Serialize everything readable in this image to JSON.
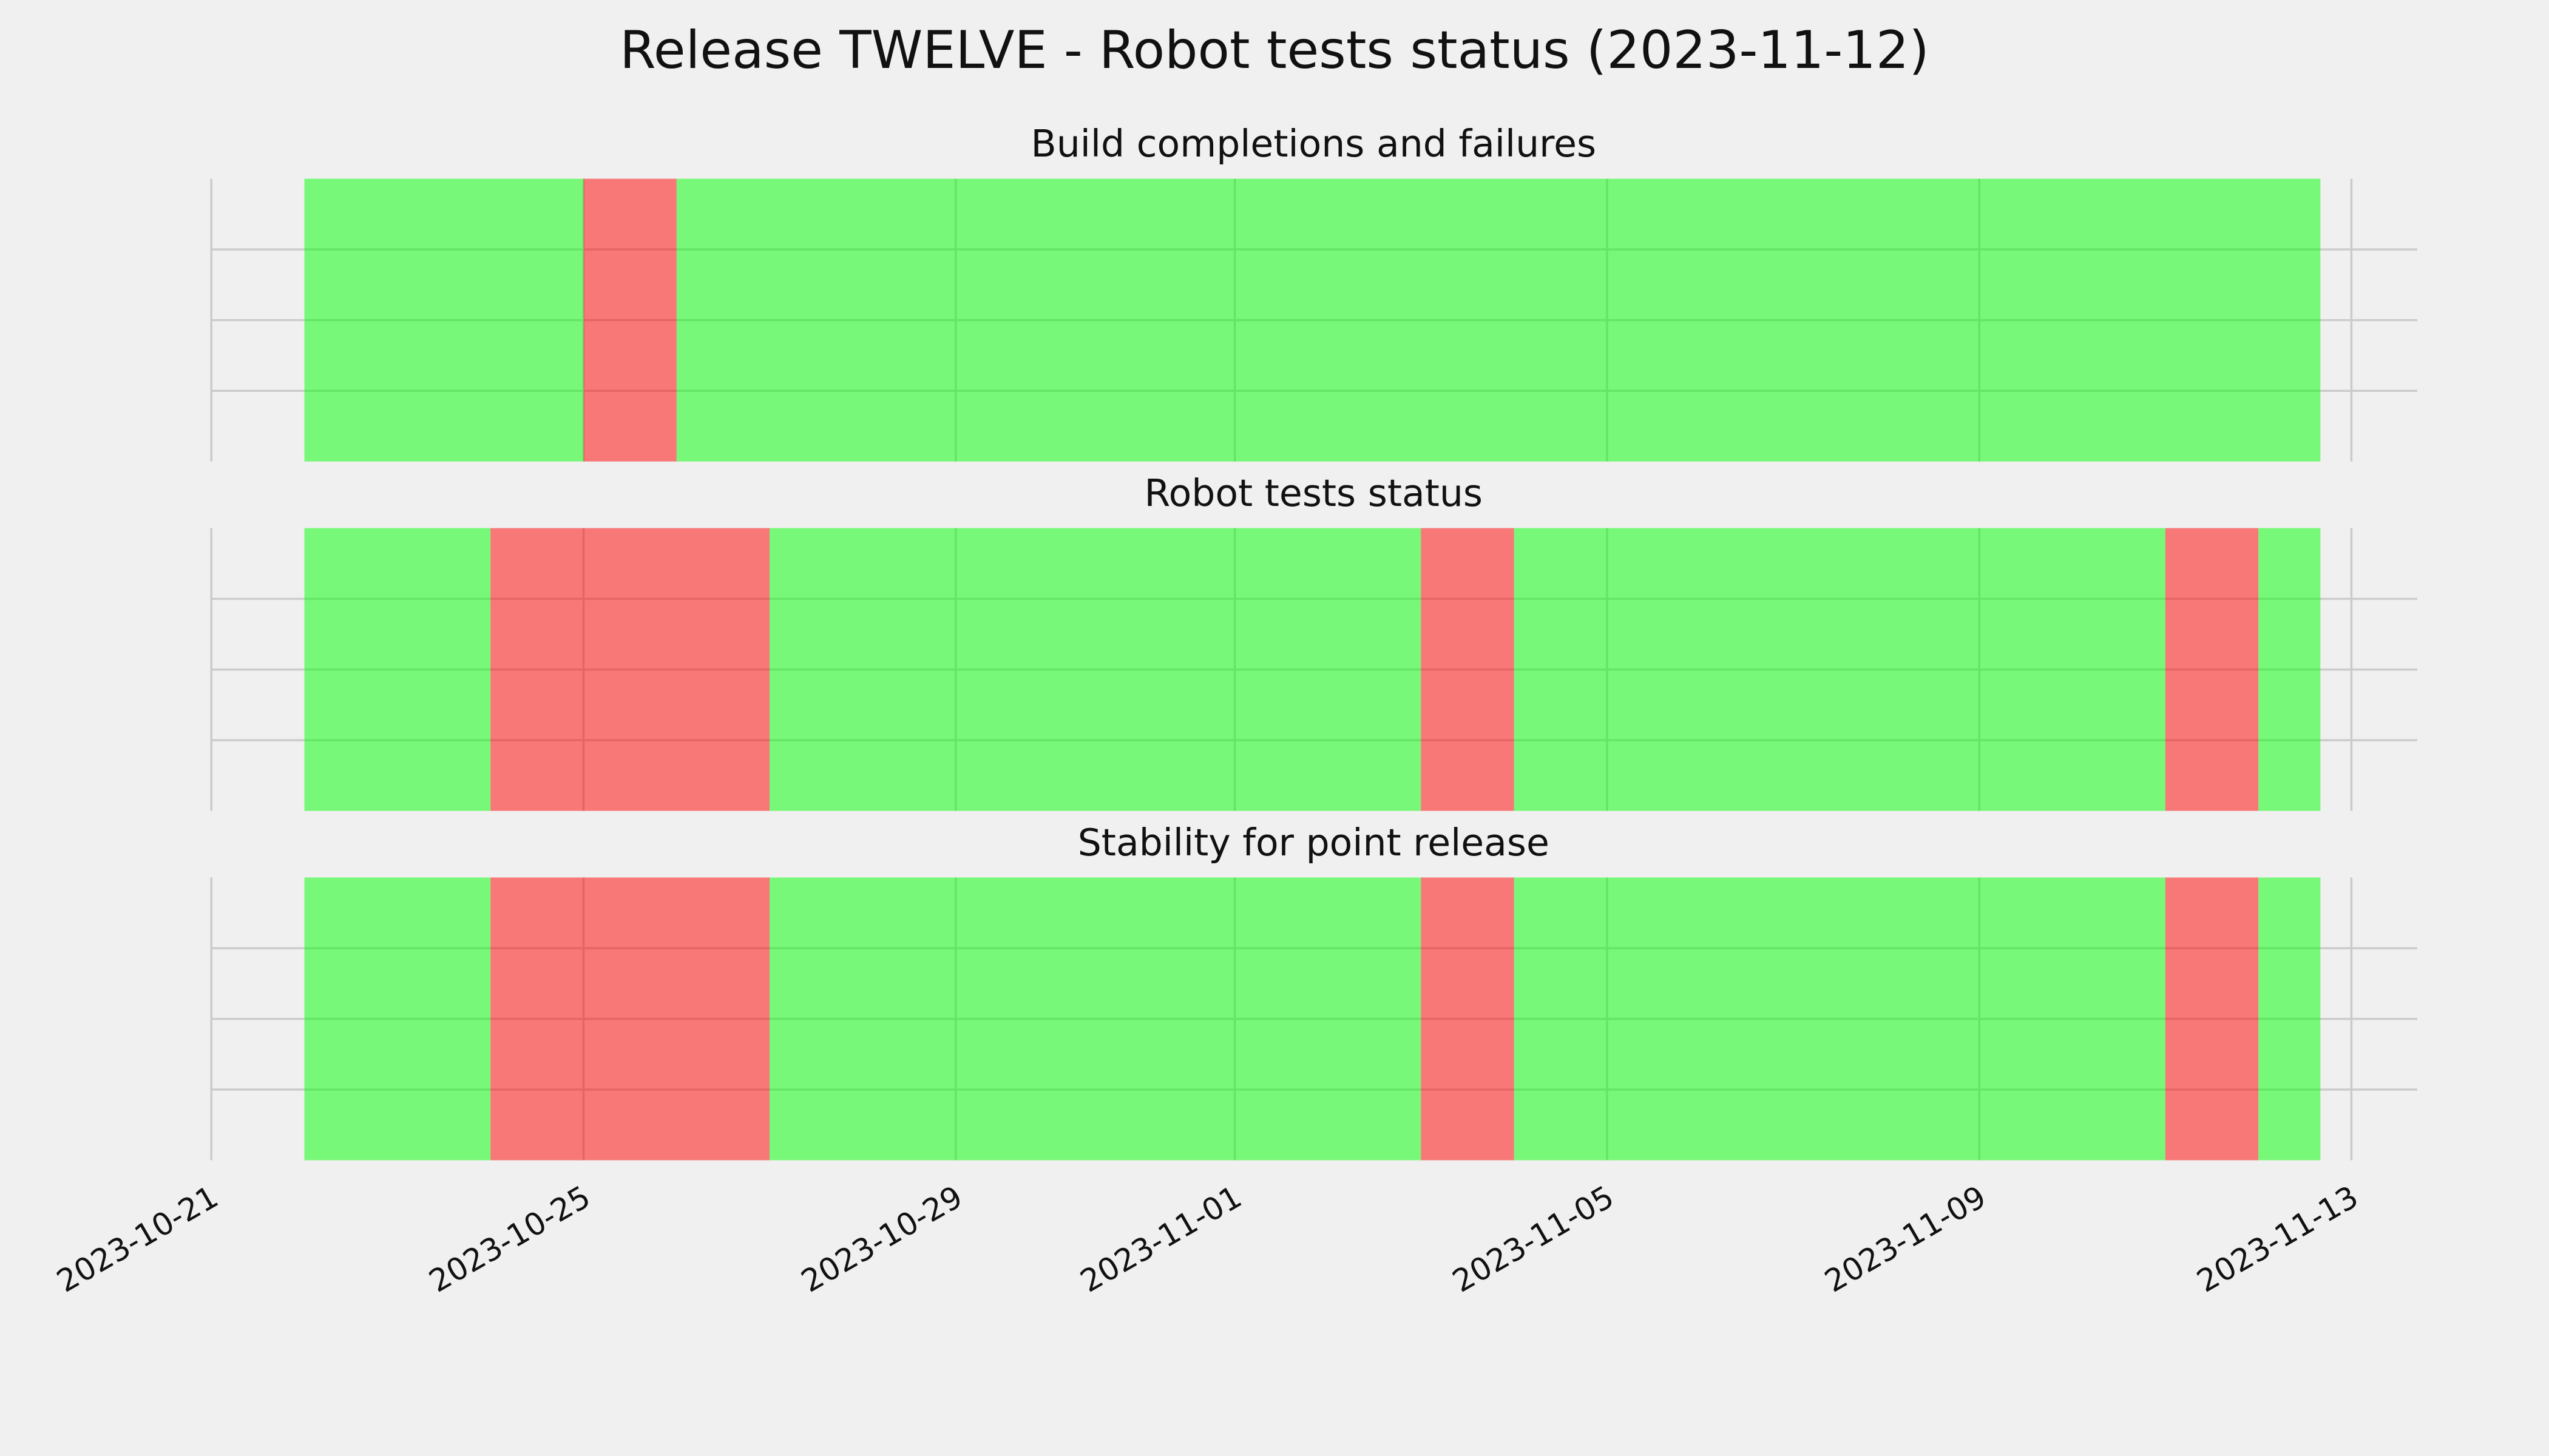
{
  "chart_data": {
    "type": "timeline",
    "title": "Release TWELVE - Robot tests status (2023-11-12)",
    "xlim": [
      "2023-10-21",
      "2023-11-13T17:00"
    ],
    "xticks": [
      "2023-10-21",
      "2023-10-25",
      "2023-10-29",
      "2023-11-01",
      "2023-11-05",
      "2023-11-09",
      "2023-11-13"
    ],
    "grid": true,
    "alpha": 0.5,
    "series": [
      {
        "name": "Build completions and failures",
        "spans": [
          {
            "start": "2023-10-22",
            "end": "2023-10-25",
            "color": "#00ff00"
          },
          {
            "start": "2023-10-25",
            "end": "2023-10-26",
            "color": "#ff0000"
          },
          {
            "start": "2023-10-26",
            "end": "2023-11-12T16:00",
            "color": "#00ff00"
          }
        ]
      },
      {
        "name": "Robot tests status",
        "spans": [
          {
            "start": "2023-10-22",
            "end": "2023-10-24",
            "color": "#00ff00"
          },
          {
            "start": "2023-10-24",
            "end": "2023-10-27",
            "color": "#ff0000"
          },
          {
            "start": "2023-10-27",
            "end": "2023-11-03",
            "color": "#00ff00"
          },
          {
            "start": "2023-11-03",
            "end": "2023-11-04",
            "color": "#ff0000"
          },
          {
            "start": "2023-11-04",
            "end": "2023-11-11",
            "color": "#00ff00"
          },
          {
            "start": "2023-11-11",
            "end": "2023-11-12",
            "color": "#ff0000"
          },
          {
            "start": "2023-11-12",
            "end": "2023-11-12T16:00",
            "color": "#00ff00"
          }
        ]
      },
      {
        "name": "Stability for point release",
        "spans": [
          {
            "start": "2023-10-22",
            "end": "2023-10-24",
            "color": "#00ff00"
          },
          {
            "start": "2023-10-24",
            "end": "2023-10-27",
            "color": "#ff0000"
          },
          {
            "start": "2023-10-27",
            "end": "2023-11-03",
            "color": "#00ff00"
          },
          {
            "start": "2023-11-03",
            "end": "2023-11-04",
            "color": "#ff0000"
          },
          {
            "start": "2023-11-04",
            "end": "2023-11-11",
            "color": "#00ff00"
          },
          {
            "start": "2023-11-11",
            "end": "2023-11-12",
            "color": "#ff0000"
          },
          {
            "start": "2023-11-12",
            "end": "2023-11-12T16:00",
            "color": "#00ff00"
          }
        ]
      }
    ]
  }
}
